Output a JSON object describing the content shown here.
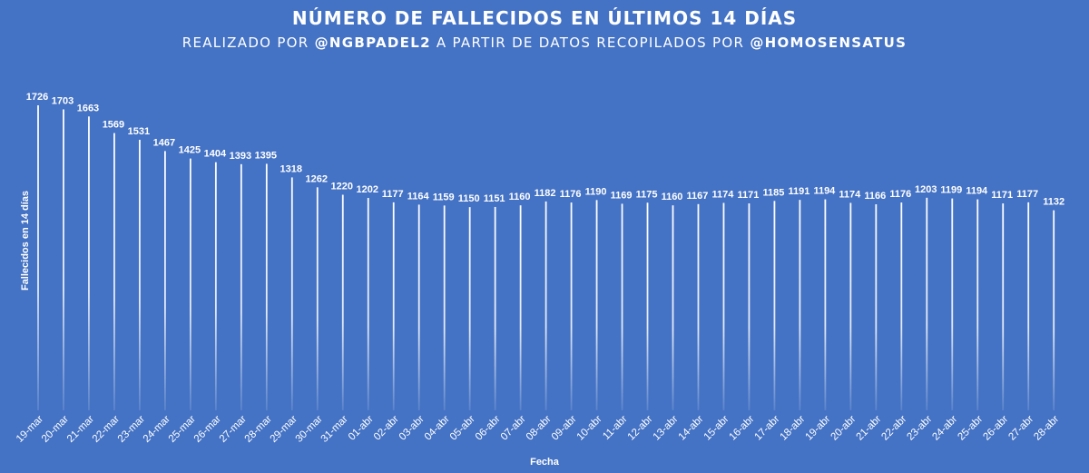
{
  "title": "NÚMERO DE FALLECIDOS EN ÚLTIMOS 14 DÍAS",
  "subtitle": {
    "p1": "REALIZADO POR ",
    "author": "@NGBPADEL2",
    "p2": " A PARTIR DE DATOS RECOPILADOS POR ",
    "source": "@HOMOSENSATUS"
  },
  "colors": {
    "background": "#4472c4",
    "bars": "#ffffff",
    "text": "#ffffff"
  },
  "chart_data": {
    "type": "bar",
    "title": "NÚMERO DE FALLECIDOS EN ÚLTIMOS 14 DÍAS",
    "xlabel": "Fecha",
    "ylabel": "Fallecidos en 14 días",
    "grid": false,
    "legend": "none",
    "categories": [
      "19-mar",
      "20-mar",
      "21-mar",
      "22-mar",
      "23-mar",
      "24-mar",
      "25-mar",
      "26-mar",
      "27-mar",
      "28-mar",
      "29-mar",
      "30-mar",
      "31-mar",
      "01-abr",
      "02-abr",
      "03-abr",
      "04-abr",
      "05-abr",
      "06-abr",
      "07-abr",
      "08-abr",
      "09-abr",
      "10-abr",
      "11-abr",
      "12-abr",
      "13-abr",
      "14-abr",
      "15-abr",
      "16-abr",
      "17-abr",
      "18-abr",
      "19-abr",
      "20-abr",
      "21-abr",
      "22-abr",
      "23-abr",
      "24-abr",
      "25-abr",
      "26-abr",
      "27-abr",
      "28-abr"
    ],
    "values": [
      1726,
      1703,
      1663,
      1569,
      1531,
      1467,
      1425,
      1404,
      1393,
      1395,
      1318,
      1262,
      1220,
      1202,
      1177,
      1164,
      1159,
      1150,
      1151,
      1160,
      1182,
      1176,
      1190,
      1169,
      1175,
      1160,
      1167,
      1174,
      1171,
      1185,
      1191,
      1194,
      1174,
      1166,
      1176,
      1203,
      1199,
      1194,
      1171,
      1177,
      1132
    ],
    "ylim": [
      0,
      1730
    ]
  }
}
